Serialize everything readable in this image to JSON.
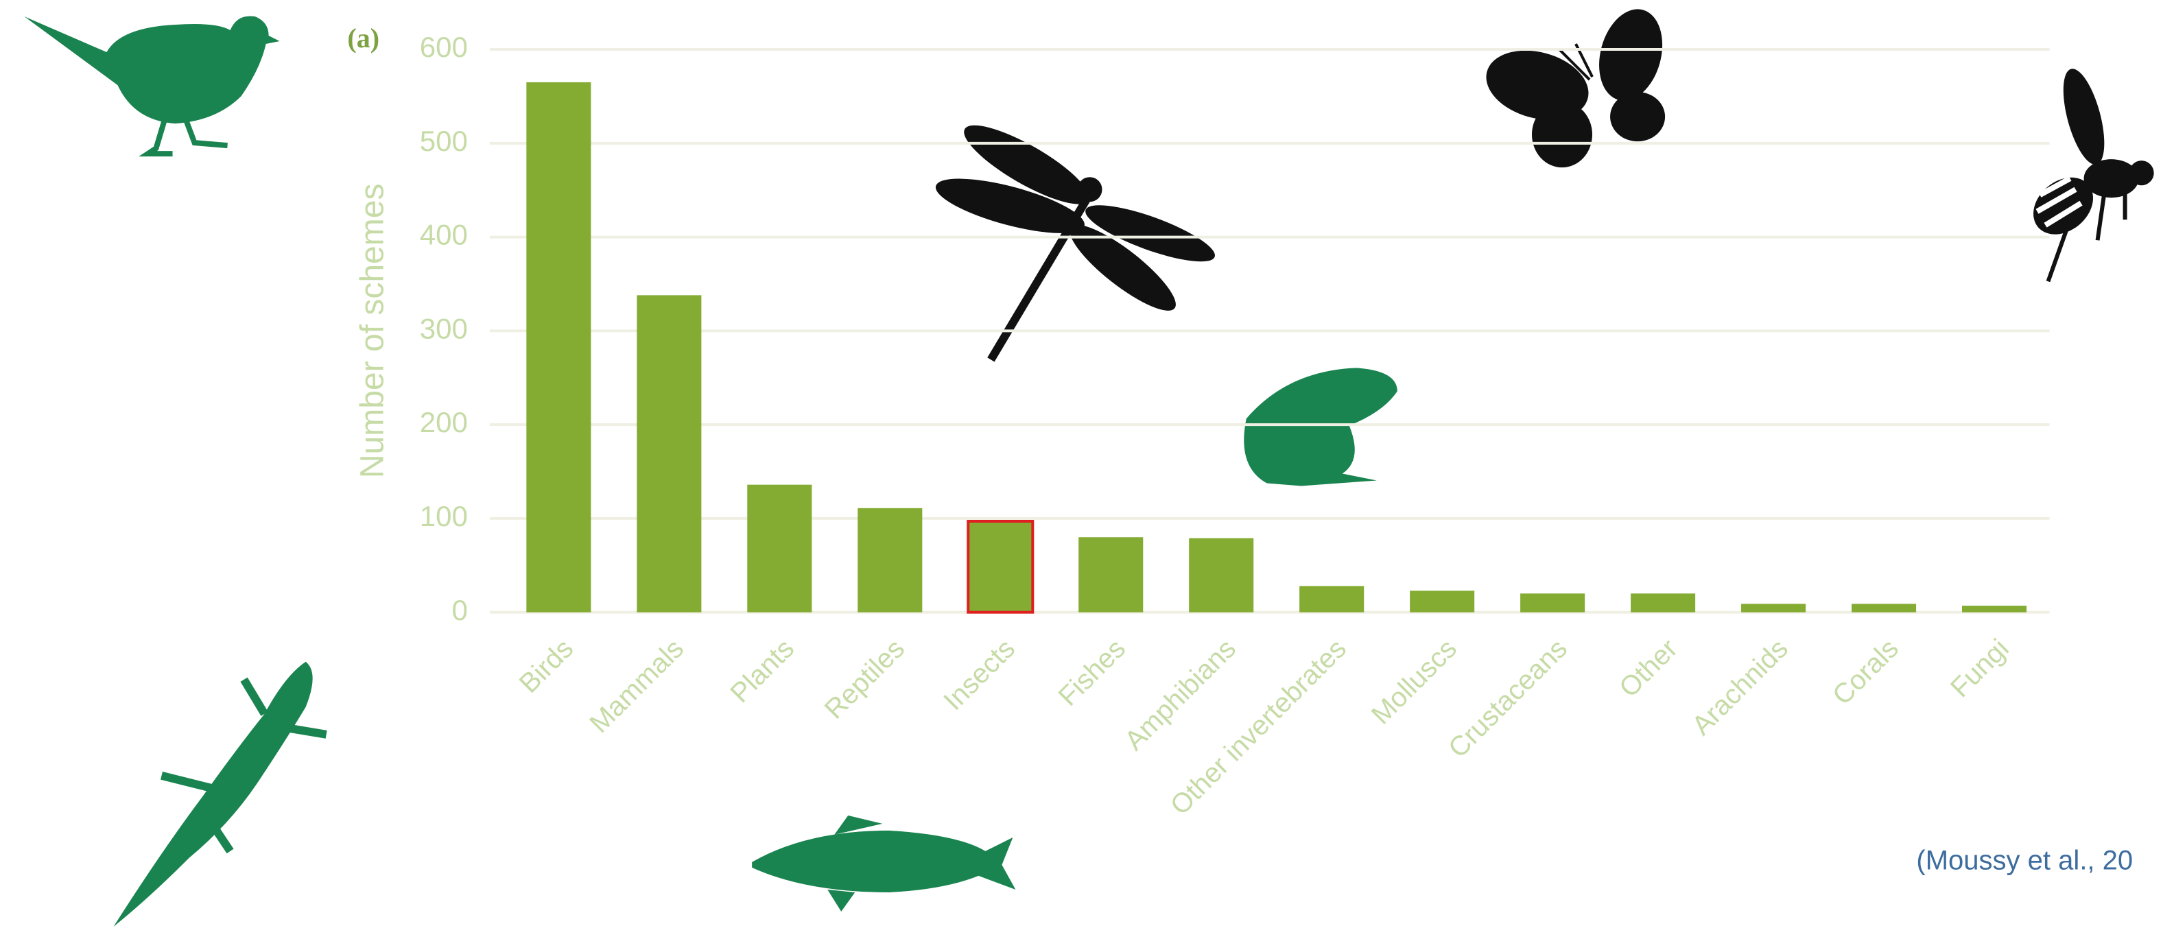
{
  "chart_data": {
    "type": "bar",
    "panel_label": "(a)",
    "y_label": "Number of schemes",
    "categories": [
      "Birds",
      "Mammals",
      "Plants",
      "Reptiles",
      "Insects",
      "Fishes",
      "Amphibians",
      "Other invertebrates",
      "Molluscs",
      "Crustaceans",
      "Other",
      "Arachnids",
      "Corals",
      "Fungi"
    ],
    "values": [
      565,
      338,
      136,
      111,
      97,
      80,
      79,
      28,
      23,
      20,
      20,
      9,
      9,
      7
    ],
    "color": "#84ac33",
    "highlight": "Insects",
    "highlight_color": "#e02020",
    "ylim": [
      0,
      600
    ],
    "yticks": [
      0,
      100,
      200,
      300,
      400,
      500,
      600
    ],
    "grid": true,
    "source": "(Moussy et al., 20"
  }
}
